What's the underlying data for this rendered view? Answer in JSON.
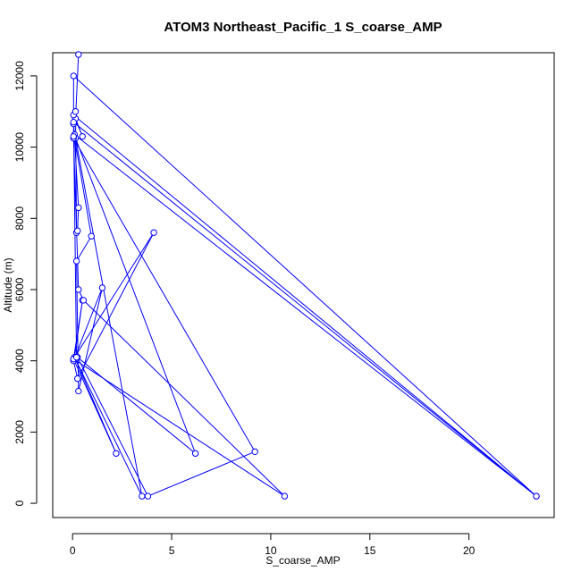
{
  "chart_data": {
    "type": "line",
    "title": "ATOM3 Northeast_Pacific_1 S_coarse_AMP",
    "xlabel": "S_coarse_AMP",
    "ylabel": "Altitude (m)",
    "xlim": [
      -1,
      24.3
    ],
    "ylim": [
      -400,
      12650
    ],
    "xticks": [
      0,
      5,
      10,
      15,
      20
    ],
    "yticks": [
      0,
      2000,
      4000,
      6000,
      8000,
      10000,
      12000
    ],
    "color": "#0000ff",
    "series": [
      {
        "x": [
          0.3,
          0.15,
          0.5,
          0.05,
          23.4,
          0.1,
          0.05,
          0.15,
          0.2,
          0.25,
          0.3,
          0.1,
          0.95,
          0.2,
          0.3,
          1.5,
          0.05,
          0.25,
          4.1,
          0.1,
          0.5,
          0.05,
          2.2,
          0.1,
          3.5,
          0.15,
          6.2,
          0.25,
          3.8,
          9.2,
          0.05,
          0.3,
          0.55,
          10.7,
          0.05,
          0.2,
          0.05,
          23.4,
          0.05,
          0.05
        ],
        "y": [
          12600,
          10800,
          10300,
          10900,
          200,
          10350,
          10650,
          11000,
          7600,
          7650,
          8300,
          10250,
          7500,
          6800,
          3150,
          6050,
          4000,
          3500,
          7600,
          4100,
          5700,
          4050,
          1400,
          4100,
          200,
          10250,
          1400,
          4100,
          200,
          1450,
          10250,
          6000,
          5700,
          200,
          4050,
          4100,
          10700,
          200,
          12000,
          10300
        ]
      }
    ]
  }
}
